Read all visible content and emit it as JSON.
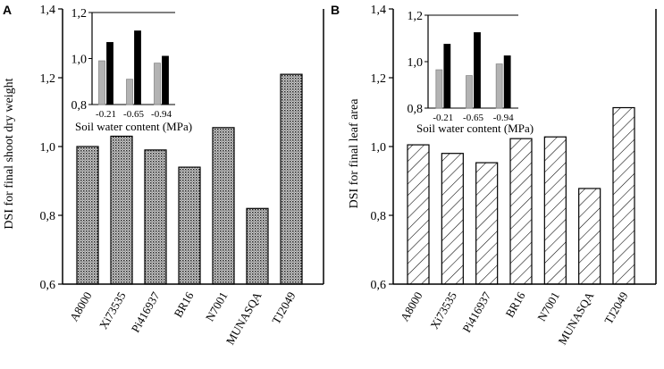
{
  "figure": {
    "panels": [
      {
        "letter": "A",
        "pattern": "dots",
        "chart_data": {
          "type": "bar",
          "title": "",
          "xlabel": "",
          "ylabel": "DSI for final shoot dry weight",
          "ylim": [
            0.6,
            1.4
          ],
          "yticks": [
            "0,6",
            "0,8",
            "1,0",
            "1,2",
            "1,4"
          ],
          "categories": [
            "A8000",
            "Xi73535",
            "Pi416937",
            "BR16",
            "N7001",
            "MUNASQA",
            "TJ2049"
          ],
          "values": [
            1.0,
            1.03,
            0.99,
            0.94,
            1.055,
            0.82,
            1.21
          ]
        },
        "inset": {
          "chart_data": {
            "type": "bar",
            "xlabel": "Soil water content (MPa)",
            "ylim": [
              0.8,
              1.2
            ],
            "yticks": [
              "0,8",
              "1,0",
              "1,2"
            ],
            "categories": [
              "-0.21",
              "-0.65",
              "-0.94"
            ],
            "series": [
              {
                "name": "gray",
                "color": "#b3b3b3",
                "values": [
                  0.99,
                  0.91,
                  0.98
                ]
              },
              {
                "name": "black",
                "color": "#000000",
                "values": [
                  1.07,
                  1.12,
                  1.01
                ]
              }
            ]
          }
        }
      },
      {
        "letter": "B",
        "pattern": "hatch",
        "chart_data": {
          "type": "bar",
          "title": "",
          "xlabel": "",
          "ylabel": "DSI for final leaf area",
          "ylim": [
            0.6,
            1.4
          ],
          "yticks": [
            "0,6",
            "0,8",
            "1,0",
            "1,2",
            "1,4"
          ],
          "categories": [
            "A8000",
            "Xi73535",
            "Pi416937",
            "BR16",
            "N7001",
            "MUNASQA",
            "TJ2049"
          ],
          "values": [
            1.005,
            0.98,
            0.953,
            1.023,
            1.028,
            0.878,
            1.113
          ]
        },
        "inset": {
          "chart_data": {
            "type": "bar",
            "xlabel": "Soil water content (MPa)",
            "ylim": [
              0.8,
              1.2
            ],
            "yticks": [
              "0,8",
              "1,0",
              "1,2"
            ],
            "categories": [
              "-0.21",
              "-0.65",
              "-0.94"
            ],
            "series": [
              {
                "name": "gray",
                "color": "#b3b3b3",
                "values": [
                  0.965,
                  0.94,
                  0.99
                ]
              },
              {
                "name": "black",
                "color": "#000000",
                "values": [
                  1.075,
                  1.125,
                  1.025
                ]
              }
            ]
          }
        }
      }
    ]
  }
}
